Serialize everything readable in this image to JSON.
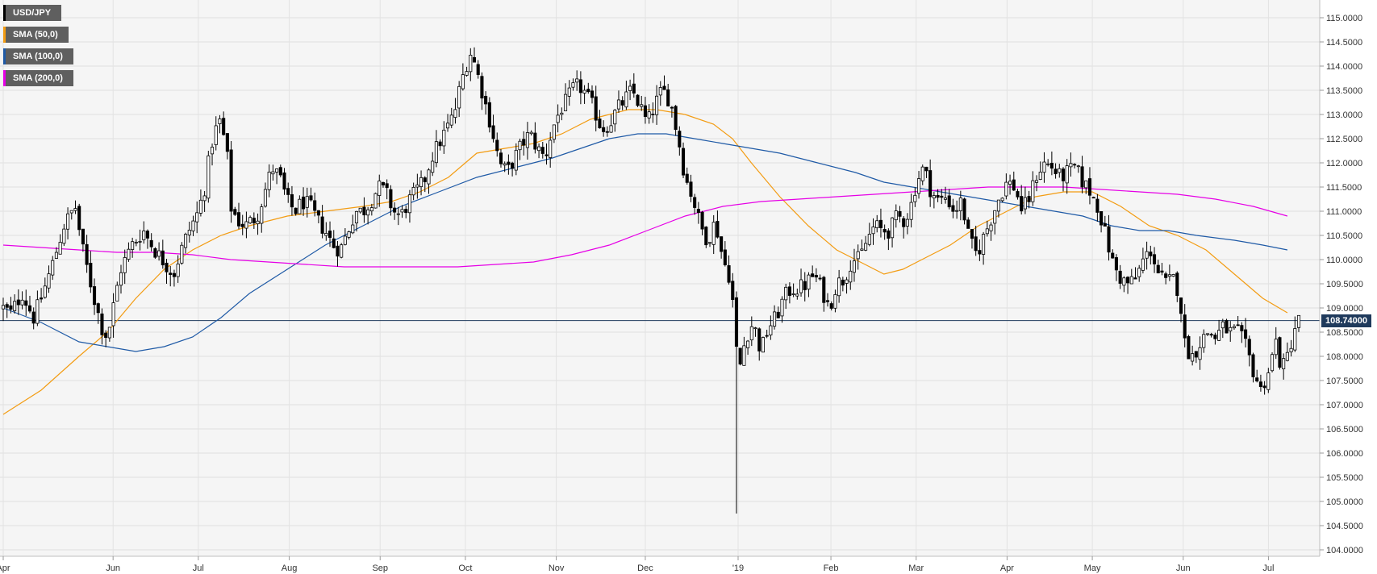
{
  "legend": [
    {
      "label": "USD/JPY",
      "color": "#000000"
    },
    {
      "label": "SMA (50,0)",
      "color": "#f39c12"
    },
    {
      "label": "SMA (100,0)",
      "color": "#1f5aa6"
    },
    {
      "label": "SMA (200,0)",
      "color": "#e600e6"
    }
  ],
  "last_price_label": "108.74000",
  "chart_data": {
    "type": "candlestick",
    "title": "",
    "instrument": "USD/JPY",
    "grid": true,
    "legend_position": "top-left",
    "ylim": [
      104.0,
      115.0
    ],
    "y_ticks": [
      "115.0000",
      "114.5000",
      "114.0000",
      "113.5000",
      "113.0000",
      "112.5000",
      "112.0000",
      "111.5000",
      "111.0000",
      "110.5000",
      "110.0000",
      "109.5000",
      "109.0000",
      "108.5000",
      "108.0000",
      "107.5000",
      "107.0000",
      "106.5000",
      "106.0000",
      "105.5000",
      "105.0000",
      "104.5000",
      "104.0000"
    ],
    "x_ticks": [
      {
        "label": "Apr",
        "t": 0
      },
      {
        "label": "Jun",
        "t": 58
      },
      {
        "label": "Jul",
        "t": 103
      },
      {
        "label": "Aug",
        "t": 151
      },
      {
        "label": "Sep",
        "t": 199
      },
      {
        "label": "Oct",
        "t": 244
      },
      {
        "label": "Nov",
        "t": 292
      },
      {
        "label": "Dec",
        "t": 339
      },
      {
        "label": "'19",
        "t": 388
      },
      {
        "label": "Feb",
        "t": 437
      },
      {
        "label": "Mar",
        "t": 482
      },
      {
        "label": "Apr",
        "t": 530
      },
      {
        "label": "May",
        "t": 575
      },
      {
        "label": "Jun",
        "t": 623
      },
      {
        "label": "Jul",
        "t": 668
      }
    ],
    "last_price": 108.74,
    "price_path": [
      [
        0,
        109.0
      ],
      [
        4,
        108.9
      ],
      [
        10,
        109.3
      ],
      [
        16,
        108.8
      ],
      [
        20,
        109.2
      ],
      [
        26,
        109.9
      ],
      [
        32,
        110.7
      ],
      [
        38,
        111.1
      ],
      [
        42,
        110.2
      ],
      [
        48,
        109.2
      ],
      [
        52,
        108.6
      ],
      [
        55,
        108.4
      ],
      [
        58,
        109.0
      ],
      [
        62,
        109.8
      ],
      [
        68,
        110.3
      ],
      [
        74,
        110.6
      ],
      [
        80,
        110.2
      ],
      [
        86,
        109.9
      ],
      [
        90,
        109.7
      ],
      [
        94,
        110.2
      ],
      [
        98,
        110.6
      ],
      [
        102,
        110.9
      ],
      [
        106,
        111.4
      ],
      [
        110,
        112.4
      ],
      [
        114,
        112.9
      ],
      [
        118,
        112.3
      ],
      [
        120,
        111.1
      ],
      [
        124,
        110.8
      ],
      [
        128,
        110.7
      ],
      [
        134,
        110.9
      ],
      [
        138,
        111.4
      ],
      [
        142,
        111.9
      ],
      [
        146,
        111.7
      ],
      [
        150,
        111.2
      ],
      [
        154,
        111.0
      ],
      [
        158,
        111.2
      ],
      [
        162,
        111.1
      ],
      [
        166,
        110.8
      ],
      [
        170,
        110.6
      ],
      [
        174,
        110.3
      ],
      [
        178,
        110.2
      ],
      [
        182,
        110.6
      ],
      [
        186,
        111.0
      ],
      [
        190,
        111.0
      ],
      [
        194,
        111.2
      ],
      [
        198,
        111.5
      ],
      [
        202,
        111.4
      ],
      [
        206,
        111.0
      ],
      [
        210,
        110.9
      ],
      [
        214,
        111.2
      ],
      [
        218,
        111.4
      ],
      [
        222,
        111.6
      ],
      [
        226,
        112.1
      ],
      [
        230,
        112.4
      ],
      [
        234,
        112.7
      ],
      [
        238,
        113.0
      ],
      [
        242,
        113.7
      ],
      [
        245,
        114.1
      ],
      [
        247,
        114.3
      ],
      [
        250,
        113.9
      ],
      [
        254,
        113.3
      ],
      [
        258,
        112.7
      ],
      [
        262,
        112.0
      ],
      [
        266,
        111.8
      ],
      [
        270,
        112.1
      ],
      [
        274,
        112.4
      ],
      [
        278,
        112.6
      ],
      [
        282,
        112.3
      ],
      [
        286,
        112.1
      ],
      [
        290,
        112.7
      ],
      [
        294,
        113.1
      ],
      [
        298,
        113.3
      ],
      [
        300,
        113.5
      ],
      [
        304,
        113.6
      ],
      [
        308,
        113.4
      ],
      [
        312,
        113.1
      ],
      [
        316,
        112.7
      ],
      [
        320,
        112.8
      ],
      [
        324,
        113.1
      ],
      [
        328,
        113.3
      ],
      [
        332,
        113.5
      ],
      [
        336,
        113.2
      ],
      [
        340,
        112.8
      ],
      [
        344,
        113.2
      ],
      [
        348,
        113.5
      ],
      [
        352,
        113.3
      ],
      [
        356,
        112.6
      ],
      [
        360,
        111.7
      ],
      [
        364,
        111.3
      ],
      [
        368,
        110.7
      ],
      [
        372,
        110.4
      ],
      [
        376,
        110.8
      ],
      [
        380,
        110.0
      ],
      [
        384,
        109.6
      ],
      [
        386,
        108.8
      ],
      [
        388,
        107.6
      ],
      [
        390,
        108.0
      ],
      [
        392,
        108.4
      ],
      [
        396,
        108.7
      ],
      [
        400,
        108.1
      ],
      [
        404,
        108.6
      ],
      [
        408,
        108.8
      ],
      [
        412,
        109.2
      ],
      [
        416,
        109.4
      ],
      [
        420,
        109.4
      ],
      [
        424,
        109.5
      ],
      [
        428,
        109.7
      ],
      [
        432,
        109.4
      ],
      [
        436,
        109.0
      ],
      [
        440,
        109.5
      ],
      [
        444,
        109.6
      ],
      [
        448,
        110.0
      ],
      [
        452,
        110.0
      ],
      [
        456,
        110.4
      ],
      [
        460,
        110.7
      ],
      [
        464,
        110.6
      ],
      [
        468,
        110.6
      ],
      [
        472,
        110.9
      ],
      [
        476,
        110.8
      ],
      [
        480,
        111.2
      ],
      [
        482,
        111.6
      ],
      [
        486,
        111.9
      ],
      [
        490,
        111.4
      ],
      [
        494,
        111.2
      ],
      [
        498,
        111.3
      ],
      [
        502,
        111.0
      ],
      [
        506,
        111.2
      ],
      [
        510,
        110.4
      ],
      [
        514,
        110.1
      ],
      [
        518,
        110.5
      ],
      [
        522,
        110.9
      ],
      [
        526,
        111.3
      ],
      [
        530,
        111.6
      ],
      [
        534,
        111.5
      ],
      [
        538,
        111.0
      ],
      [
        542,
        111.3
      ],
      [
        546,
        111.8
      ],
      [
        550,
        112.0
      ],
      [
        554,
        111.9
      ],
      [
        558,
        111.7
      ],
      [
        562,
        111.8
      ],
      [
        566,
        111.9
      ],
      [
        570,
        111.6
      ],
      [
        574,
        111.4
      ],
      [
        578,
        111.1
      ],
      [
        582,
        110.5
      ],
      [
        586,
        109.9
      ],
      [
        590,
        109.6
      ],
      [
        594,
        109.5
      ],
      [
        598,
        109.6
      ],
      [
        602,
        110.0
      ],
      [
        606,
        110.2
      ],
      [
        610,
        109.7
      ],
      [
        614,
        109.5
      ],
      [
        618,
        109.6
      ],
      [
        621,
        109.3
      ],
      [
        624,
        108.2
      ],
      [
        628,
        108.0
      ],
      [
        632,
        108.3
      ],
      [
        636,
        108.5
      ],
      [
        640,
        108.4
      ],
      [
        644,
        108.6
      ],
      [
        648,
        108.5
      ],
      [
        652,
        108.5
      ],
      [
        656,
        108.2
      ],
      [
        660,
        107.7
      ],
      [
        664,
        107.3
      ],
      [
        668,
        107.7
      ],
      [
        670,
        108.0
      ],
      [
        672,
        108.3
      ],
      [
        674,
        107.9
      ],
      [
        676,
        107.8
      ],
      [
        678,
        108.0
      ],
      [
        680,
        108.3
      ],
      [
        682,
        108.6
      ],
      [
        684,
        108.74
      ]
    ],
    "series": [
      {
        "name": "SMA (50,0)",
        "color": "#f39c12",
        "points": [
          [
            0,
            106.8
          ],
          [
            20,
            107.3
          ],
          [
            40,
            108.0
          ],
          [
            55,
            108.5
          ],
          [
            70,
            109.2
          ],
          [
            85,
            109.8
          ],
          [
            100,
            110.2
          ],
          [
            115,
            110.5
          ],
          [
            130,
            110.7
          ],
          [
            150,
            110.9
          ],
          [
            170,
            111.0
          ],
          [
            190,
            111.1
          ],
          [
            205,
            111.2
          ],
          [
            220,
            111.4
          ],
          [
            235,
            111.7
          ],
          [
            250,
            112.2
          ],
          [
            265,
            112.3
          ],
          [
            280,
            112.4
          ],
          [
            295,
            112.6
          ],
          [
            310,
            112.9
          ],
          [
            330,
            113.1
          ],
          [
            345,
            113.1
          ],
          [
            360,
            113.0
          ],
          [
            375,
            112.8
          ],
          [
            385,
            112.5
          ],
          [
            395,
            112.0
          ],
          [
            410,
            111.3
          ],
          [
            425,
            110.7
          ],
          [
            440,
            110.2
          ],
          [
            455,
            109.9
          ],
          [
            465,
            109.7
          ],
          [
            475,
            109.8
          ],
          [
            485,
            110.0
          ],
          [
            500,
            110.3
          ],
          [
            515,
            110.7
          ],
          [
            530,
            111.0
          ],
          [
            545,
            111.3
          ],
          [
            560,
            111.4
          ],
          [
            575,
            111.4
          ],
          [
            590,
            111.1
          ],
          [
            605,
            110.7
          ],
          [
            620,
            110.5
          ],
          [
            635,
            110.2
          ],
          [
            650,
            109.7
          ],
          [
            665,
            109.2
          ],
          [
            678,
            108.9
          ]
        ]
      },
      {
        "name": "SMA (100,0)",
        "color": "#1f5aa6",
        "points": [
          [
            0,
            109.0
          ],
          [
            20,
            108.7
          ],
          [
            40,
            108.3
          ],
          [
            55,
            108.2
          ],
          [
            70,
            108.1
          ],
          [
            85,
            108.2
          ],
          [
            100,
            108.4
          ],
          [
            115,
            108.8
          ],
          [
            130,
            109.3
          ],
          [
            150,
            109.8
          ],
          [
            170,
            110.3
          ],
          [
            190,
            110.7
          ],
          [
            210,
            111.1
          ],
          [
            230,
            111.4
          ],
          [
            250,
            111.7
          ],
          [
            270,
            111.9
          ],
          [
            290,
            112.1
          ],
          [
            305,
            112.3
          ],
          [
            320,
            112.5
          ],
          [
            335,
            112.6
          ],
          [
            350,
            112.6
          ],
          [
            365,
            112.5
          ],
          [
            380,
            112.4
          ],
          [
            395,
            112.3
          ],
          [
            410,
            112.2
          ],
          [
            430,
            112.0
          ],
          [
            450,
            111.8
          ],
          [
            465,
            111.6
          ],
          [
            480,
            111.5
          ],
          [
            495,
            111.4
          ],
          [
            510,
            111.3
          ],
          [
            525,
            111.2
          ],
          [
            540,
            111.1
          ],
          [
            555,
            111.0
          ],
          [
            570,
            110.9
          ],
          [
            585,
            110.7
          ],
          [
            600,
            110.6
          ],
          [
            615,
            110.6
          ],
          [
            630,
            110.5
          ],
          [
            650,
            110.4
          ],
          [
            665,
            110.3
          ],
          [
            678,
            110.2
          ]
        ]
      },
      {
        "name": "SMA (200,0)",
        "color": "#e600e6",
        "points": [
          [
            0,
            110.3
          ],
          [
            20,
            110.25
          ],
          [
            40,
            110.2
          ],
          [
            60,
            110.15
          ],
          [
            80,
            110.15
          ],
          [
            100,
            110.1
          ],
          [
            120,
            110.0
          ],
          [
            140,
            109.95
          ],
          [
            160,
            109.9
          ],
          [
            180,
            109.85
          ],
          [
            200,
            109.85
          ],
          [
            220,
            109.85
          ],
          [
            240,
            109.85
          ],
          [
            260,
            109.9
          ],
          [
            280,
            109.95
          ],
          [
            300,
            110.1
          ],
          [
            320,
            110.3
          ],
          [
            340,
            110.6
          ],
          [
            360,
            110.9
          ],
          [
            380,
            111.1
          ],
          [
            400,
            111.2
          ],
          [
            420,
            111.25
          ],
          [
            440,
            111.3
          ],
          [
            460,
            111.35
          ],
          [
            480,
            111.4
          ],
          [
            500,
            111.45
          ],
          [
            520,
            111.5
          ],
          [
            540,
            111.5
          ],
          [
            560,
            111.5
          ],
          [
            580,
            111.45
          ],
          [
            600,
            111.4
          ],
          [
            620,
            111.35
          ],
          [
            640,
            111.25
          ],
          [
            660,
            111.1
          ],
          [
            678,
            110.9
          ]
        ]
      }
    ]
  }
}
